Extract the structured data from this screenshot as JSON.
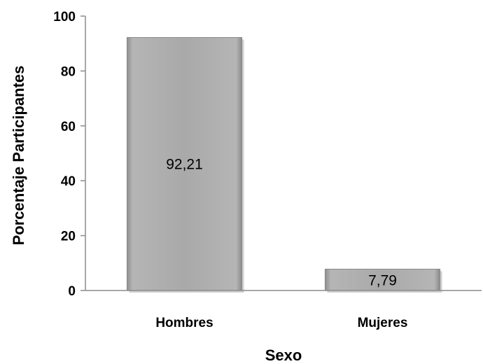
{
  "chart_data": {
    "type": "bar",
    "title": "",
    "xlabel": "Sexo",
    "ylabel": "Porcentaje Participantes",
    "categories": [
      "Hombres",
      "Mujeres"
    ],
    "values": [
      92.21,
      7.79
    ],
    "data_labels": [
      "92,21",
      "7,79"
    ],
    "ylim": [
      0,
      100
    ],
    "yticks": [
      0,
      20,
      40,
      60,
      80,
      100
    ],
    "ytick_labels": [
      "0",
      "20",
      "40",
      "60",
      "80",
      "100"
    ],
    "grid": false,
    "legend": "none",
    "bar_color": "#a6a6a6"
  }
}
